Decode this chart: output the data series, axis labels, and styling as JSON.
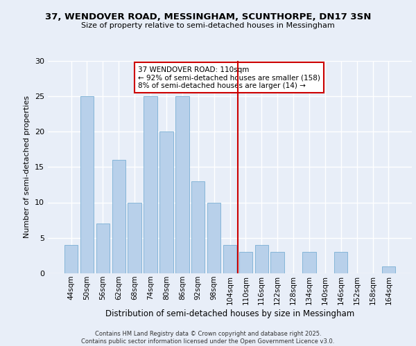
{
  "title": "37, WENDOVER ROAD, MESSINGHAM, SCUNTHORPE, DN17 3SN",
  "subtitle": "Size of property relative to semi-detached houses in Messingham",
  "xlabel": "Distribution of semi-detached houses by size in Messingham",
  "ylabel": "Number of semi-detached properties",
  "categories": [
    "44sqm",
    "50sqm",
    "56sqm",
    "62sqm",
    "68sqm",
    "74sqm",
    "80sqm",
    "86sqm",
    "92sqm",
    "98sqm",
    "104sqm",
    "110sqm",
    "116sqm",
    "122sqm",
    "128sqm",
    "134sqm",
    "140sqm",
    "146sqm",
    "152sqm",
    "158sqm",
    "164sqm"
  ],
  "values": [
    4,
    25,
    7,
    16,
    10,
    25,
    20,
    25,
    13,
    10,
    4,
    3,
    4,
    3,
    0,
    3,
    0,
    3,
    0,
    0,
    1
  ],
  "bar_color": "#b8d0ea",
  "bar_edge_color": "#7aafd4",
  "vline_color": "#cc0000",
  "annotation_title": "37 WENDOVER ROAD: 110sqm",
  "annotation_line1": "← 92% of semi-detached houses are smaller (158)",
  "annotation_line2": "8% of semi-detached houses are larger (14) →",
  "annotation_box_color": "#cc0000",
  "ylim": [
    0,
    30
  ],
  "yticks": [
    0,
    5,
    10,
    15,
    20,
    25,
    30
  ],
  "fig_bg_color": "#e8eef8",
  "ax_bg_color": "#e8eef8",
  "footer_line1": "Contains HM Land Registry data © Crown copyright and database right 2025.",
  "footer_line2": "Contains public sector information licensed under the Open Government Licence v3.0."
}
